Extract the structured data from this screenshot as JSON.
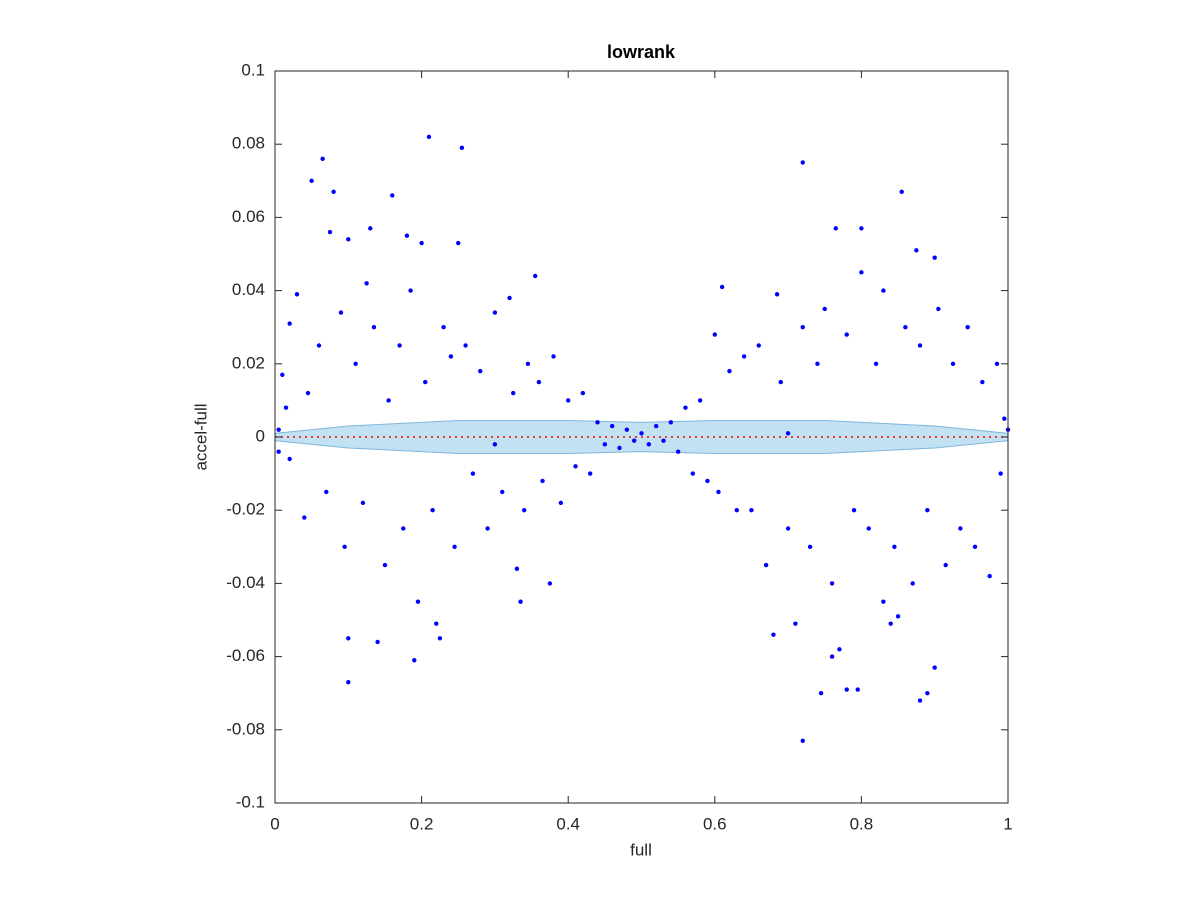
{
  "chart_data": {
    "type": "scatter",
    "title": "lowrank",
    "x_label": "full",
    "y_label": "accel-full",
    "color": "#0000ff",
    "x": [
      0.21,
      0.255,
      0.065,
      0.72,
      0.855,
      0.05,
      0.08,
      0.16,
      0.72,
      0.88,
      0.89,
      0.9,
      0.1,
      0.19,
      0.745,
      0.78,
      0.795,
      0.76,
      0.77,
      0.1,
      0.14,
      0.22,
      0.225,
      0.335,
      0.33,
      0.375,
      0.68,
      0.71,
      0.84,
      0.83,
      0.85,
      0.355,
      0.61,
      0.685,
      0.765,
      0.8,
      0.875,
      0.9,
      0.13,
      0.1,
      0.18,
      0.2,
      0.25,
      0.075,
      0.02,
      0.03,
      0.01,
      0.02,
      0.005,
      0.015,
      0.04,
      0.045,
      0.06,
      0.07,
      0.09,
      0.095,
      0.11,
      0.12,
      0.125,
      0.135,
      0.15,
      0.155,
      0.17,
      0.175,
      0.185,
      0.195,
      0.205,
      0.215,
      0.23,
      0.24,
      0.245,
      0.26,
      0.27,
      0.28,
      0.29,
      0.3,
      0.31,
      0.32,
      0.325,
      0.34,
      0.345,
      0.36,
      0.365,
      0.38,
      0.39,
      0.4,
      0.41,
      0.42,
      0.43,
      0.44,
      0.45,
      0.46,
      0.47,
      0.48,
      0.49,
      0.5,
      0.51,
      0.52,
      0.53,
      0.54,
      0.55,
      0.56,
      0.57,
      0.58,
      0.59,
      0.6,
      0.605,
      0.62,
      0.63,
      0.64,
      0.65,
      0.66,
      0.67,
      0.69,
      0.7,
      0.72,
      0.73,
      0.74,
      0.75,
      0.76,
      0.78,
      0.79,
      0.8,
      0.81,
      0.82,
      0.83,
      0.845,
      0.86,
      0.87,
      0.88,
      0.89,
      0.905,
      0.915,
      0.925,
      0.935,
      0.945,
      0.955,
      0.965,
      0.975,
      0.985,
      0.99,
      0.995,
      1.0,
      0.005,
      0.3,
      0.7
    ],
    "values": [
      0.082,
      0.079,
      0.076,
      0.075,
      0.067,
      0.07,
      0.067,
      0.066,
      -0.083,
      -0.072,
      -0.07,
      -0.063,
      -0.067,
      -0.061,
      -0.07,
      -0.069,
      -0.069,
      -0.06,
      -0.058,
      -0.055,
      -0.056,
      -0.051,
      -0.055,
      -0.045,
      -0.036,
      -0.04,
      -0.054,
      -0.051,
      -0.051,
      -0.045,
      -0.049,
      0.044,
      0.041,
      0.039,
      0.057,
      0.057,
      0.051,
      0.049,
      0.057,
      0.054,
      0.055,
      0.053,
      0.053,
      0.056,
      0.031,
      0.039,
      0.017,
      -0.006,
      -0.004,
      0.008,
      -0.022,
      0.012,
      0.025,
      -0.015,
      0.034,
      -0.03,
      0.02,
      -0.018,
      0.042,
      0.03,
      -0.035,
      0.01,
      0.025,
      -0.025,
      0.04,
      -0.045,
      0.015,
      -0.02,
      0.03,
      0.022,
      -0.03,
      0.025,
      -0.01,
      0.018,
      -0.025,
      0.034,
      -0.015,
      0.038,
      0.012,
      -0.02,
      0.02,
      0.015,
      -0.012,
      0.022,
      -0.018,
      0.01,
      -0.008,
      0.012,
      -0.01,
      0.004,
      -0.002,
      0.003,
      -0.003,
      0.002,
      -0.001,
      0.001,
      -0.002,
      0.003,
      -0.001,
      0.004,
      -0.004,
      0.008,
      -0.01,
      0.01,
      -0.012,
      0.028,
      -0.015,
      0.018,
      -0.02,
      0.022,
      -0.02,
      0.025,
      -0.035,
      0.015,
      -0.025,
      0.03,
      -0.03,
      0.02,
      0.035,
      -0.04,
      0.028,
      -0.02,
      0.045,
      -0.025,
      0.02,
      0.04,
      -0.03,
      0.03,
      -0.04,
      0.025,
      -0.02,
      0.035,
      -0.035,
      0.02,
      -0.025,
      0.03,
      -0.03,
      0.015,
      -0.038,
      0.02,
      -0.01,
      0.005,
      0.002,
      0.002,
      -0.002,
      0.001
    ],
    "band": {
      "color": "#a8d4ee",
      "x": [
        0,
        0.1,
        0.25,
        0.4,
        0.5,
        0.6,
        0.75,
        0.9,
        1
      ],
      "upper": [
        0.001,
        0.003,
        0.0045,
        0.0045,
        0.004,
        0.0045,
        0.0045,
        0.003,
        0.001
      ],
      "lower": [
        -0.001,
        -0.003,
        -0.0045,
        -0.0045,
        -0.004,
        -0.0045,
        -0.0045,
        -0.003,
        -0.001
      ]
    },
    "reference_line": {
      "color": "#ff0000",
      "x": [
        0,
        1
      ],
      "values": [
        0,
        0
      ]
    },
    "xlim": [
      0,
      1
    ],
    "xticks": [
      0,
      0.2,
      0.4,
      0.6,
      0.8,
      1
    ],
    "ylim": [
      -0.1,
      0.1
    ],
    "yticks": [
      -0.1,
      -0.08,
      -0.06,
      -0.04,
      -0.02,
      0,
      0.02,
      0.04,
      0.06,
      0.08,
      0.1
    ],
    "grid": false
  }
}
